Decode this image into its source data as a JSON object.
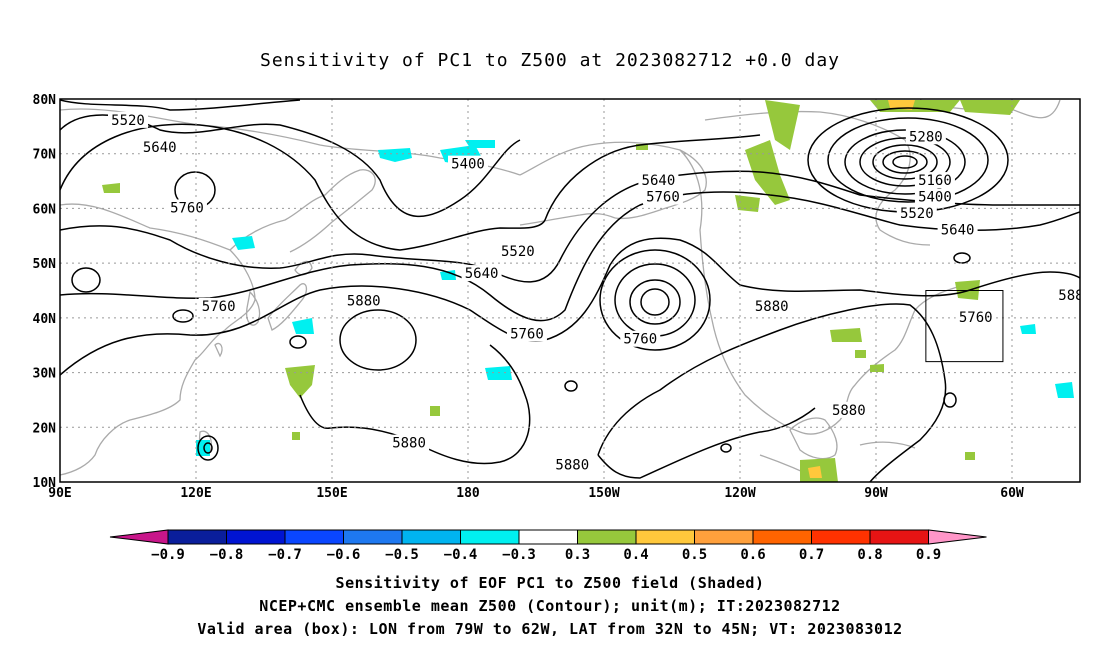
{
  "title": "Sensitivity of PC1 to Z500 at 2023082712 +0.0 day",
  "map": {
    "lon_labels": [
      "90E",
      "120E",
      "150E",
      "180",
      "150W",
      "120W",
      "90W",
      "60W"
    ],
    "lat_labels": [
      "80N",
      "70N",
      "60N",
      "50N",
      "40N",
      "30N",
      "20N",
      "10N"
    ],
    "lon_range": [
      90,
      315
    ],
    "lat_range": [
      10,
      80
    ],
    "contour_labels": [
      {
        "text": "5520",
        "lon": 105,
        "lat": 76
      },
      {
        "text": "5640",
        "lon": 112,
        "lat": 71
      },
      {
        "text": "5760",
        "lon": 118,
        "lat": 60
      },
      {
        "text": "5400",
        "lon": 180,
        "lat": 68
      },
      {
        "text": "5520",
        "lon": 191,
        "lat": 52
      },
      {
        "text": "5640",
        "lon": 183,
        "lat": 48
      },
      {
        "text": "5760",
        "lon": 125,
        "lat": 42
      },
      {
        "text": "5880",
        "lon": 157,
        "lat": 43
      },
      {
        "text": "5760",
        "lon": 193,
        "lat": 37
      },
      {
        "text": "5760",
        "lon": 218,
        "lat": 36
      },
      {
        "text": "5880",
        "lon": 167,
        "lat": 17
      },
      {
        "text": "5880",
        "lon": 203,
        "lat": 13
      },
      {
        "text": "5640",
        "lon": 222,
        "lat": 65
      },
      {
        "text": "5760",
        "lon": 223,
        "lat": 62
      },
      {
        "text": "5880",
        "lon": 247,
        "lat": 42
      },
      {
        "text": "5880",
        "lon": 264,
        "lat": 23
      },
      {
        "text": "5280",
        "lon": 281,
        "lat": 73
      },
      {
        "text": "5160",
        "lon": 283,
        "lat": 65
      },
      {
        "text": "5400",
        "lon": 283,
        "lat": 62
      },
      {
        "text": "5520",
        "lon": 279,
        "lat": 59
      },
      {
        "text": "5640",
        "lon": 288,
        "lat": 56
      },
      {
        "text": "5760",
        "lon": 292,
        "lat": 40
      },
      {
        "text": "588",
        "lon": 313,
        "lat": 44
      }
    ],
    "valid_box": {
      "lon_w": -79,
      "lon_e": -62,
      "lat_s": 32,
      "lat_n": 45
    }
  },
  "colorbar": {
    "labels": [
      "−0.9",
      "−0.8",
      "−0.7",
      "−0.6",
      "−0.5",
      "−0.4",
      "−0.3",
      "0.3",
      "0.4",
      "0.5",
      "0.6",
      "0.7",
      "0.8",
      "0.9"
    ],
    "colors": [
      "#c8168a",
      "#0a1e9b",
      "#0014d2",
      "#0a46ff",
      "#1e78f0",
      "#00b4f0",
      "#00f0f0",
      "#ffffff",
      "#96c83c",
      "#ffc83c",
      "#ffa03c",
      "#ff6400",
      "#ff3200",
      "#e61414",
      "#ff96c8"
    ]
  },
  "captions": {
    "line1": "Sensitivity of EOF PC1 to Z500 field (Shaded)",
    "line2": "NCEP+CMC ensemble mean Z500 (Contour); unit(m); IT:2023082712",
    "line3": "Valid area (box): LON from 79W to 62W, LAT from 32N to 45N; VT: 2023083012"
  }
}
